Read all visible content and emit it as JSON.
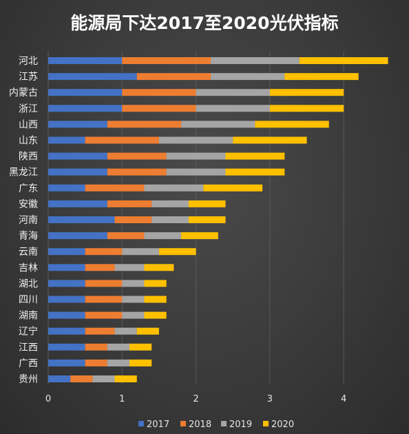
{
  "chart_data": {
    "type": "bar",
    "orientation": "horizontal",
    "stacked": true,
    "title": "能源局下达2017至2020光伏指标",
    "categories": [
      "河北",
      "江苏",
      "内蒙古",
      "浙江",
      "山西",
      "山东",
      "陕西",
      "黑龙江",
      "广东",
      "安徽",
      "河南",
      "青海",
      "云南",
      "吉林",
      "湖北",
      "四川",
      "湖南",
      "辽宁",
      "江西",
      "广西",
      "贵州"
    ],
    "series": [
      {
        "name": "2017",
        "color": "#4472c4",
        "values": [
          1.0,
          1.2,
          1.0,
          1.0,
          0.8,
          0.5,
          0.8,
          0.8,
          0.5,
          0.8,
          0.9,
          0.8,
          0.5,
          0.5,
          0.5,
          0.5,
          0.5,
          0.5,
          0.5,
          0.5,
          0.3
        ]
      },
      {
        "name": "2018",
        "color": "#ed7d31",
        "values": [
          1.2,
          1.0,
          1.0,
          1.0,
          1.0,
          1.0,
          0.8,
          0.8,
          0.8,
          0.6,
          0.5,
          0.5,
          0.5,
          0.4,
          0.5,
          0.5,
          0.5,
          0.4,
          0.3,
          0.3,
          0.3
        ]
      },
      {
        "name": "2019",
        "color": "#a5a5a5",
        "values": [
          1.2,
          1.0,
          1.0,
          1.0,
          1.0,
          1.0,
          0.8,
          0.8,
          0.8,
          0.5,
          0.5,
          0.5,
          0.5,
          0.4,
          0.3,
          0.3,
          0.3,
          0.3,
          0.3,
          0.3,
          0.3
        ]
      },
      {
        "name": "2020",
        "color": "#ffc000",
        "values": [
          1.2,
          1.0,
          1.0,
          1.0,
          1.0,
          1.0,
          0.8,
          0.8,
          0.8,
          0.5,
          0.5,
          0.5,
          0.5,
          0.4,
          0.3,
          0.3,
          0.3,
          0.3,
          0.3,
          0.3,
          0.3
        ]
      }
    ],
    "xlim": [
      0,
      4.6
    ],
    "x_ticks": [
      "0",
      "1",
      "2",
      "3",
      "4"
    ],
    "grid": true,
    "legend_position": "bottom"
  }
}
